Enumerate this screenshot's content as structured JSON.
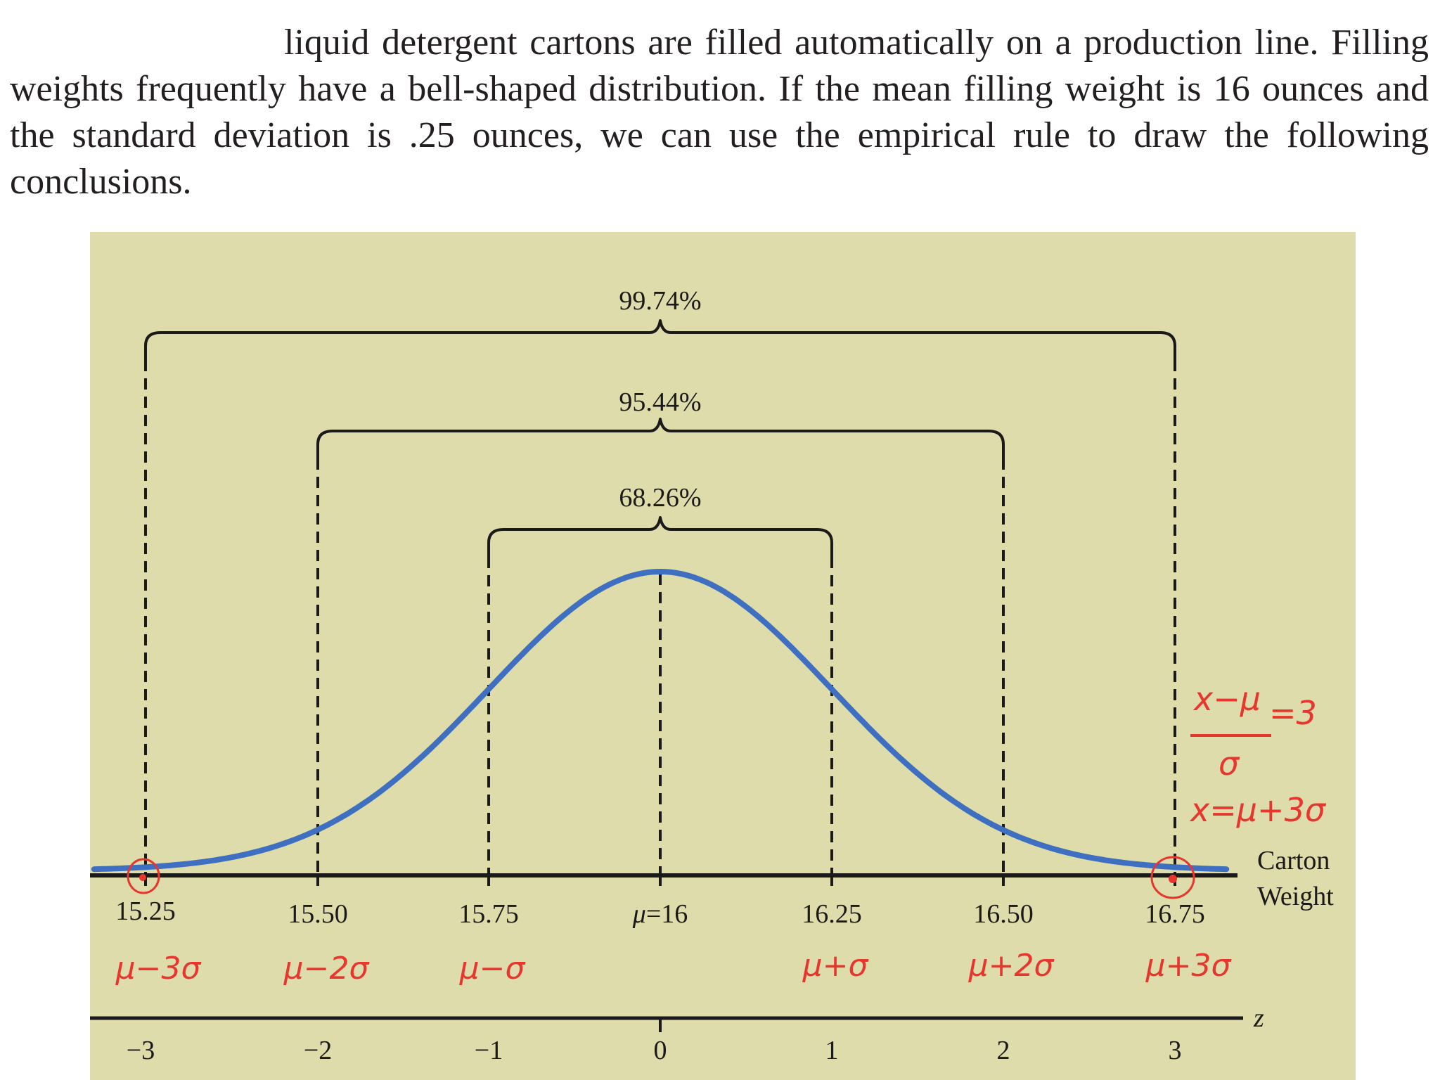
{
  "paragraph": {
    "text": "liquid detergent cartons are filled automatically on a production line. Filling weights frequently have a bell-shaped distribution. If the mean filling weight is 16 ounces and the standard deviation is .25 ounces, we can use the empirical rule to draw the following conclusions."
  },
  "figure": {
    "brackets": {
      "outer": "99.74%",
      "middle": "95.44%",
      "inner": "68.26%"
    },
    "weight_axis": {
      "ticks": [
        "15.25",
        "15.50",
        "15.75",
        "16.25",
        "16.50",
        "16.75"
      ],
      "center": "=16",
      "center_symbol": "μ",
      "title_line1": "Carton",
      "title_line2": "Weight"
    },
    "z_axis": {
      "label": "z",
      "ticks": [
        "−3",
        "−2",
        "−1",
        "0",
        "1",
        "2",
        "3"
      ]
    },
    "annotations": {
      "color": "#e8352e",
      "symbolic": [
        "μ−3σ",
        "μ−2σ",
        "μ−σ",
        "μ+σ",
        "μ+2σ",
        "μ+3σ"
      ],
      "formula_numerator": "x−μ",
      "formula_equals": "=3",
      "formula_denominator": "σ",
      "formula_result": "x=μ+3σ"
    },
    "colors": {
      "curve": "#3f6fc0",
      "panel": "#dedcaa",
      "ink": "#1a1a1a"
    }
  }
}
